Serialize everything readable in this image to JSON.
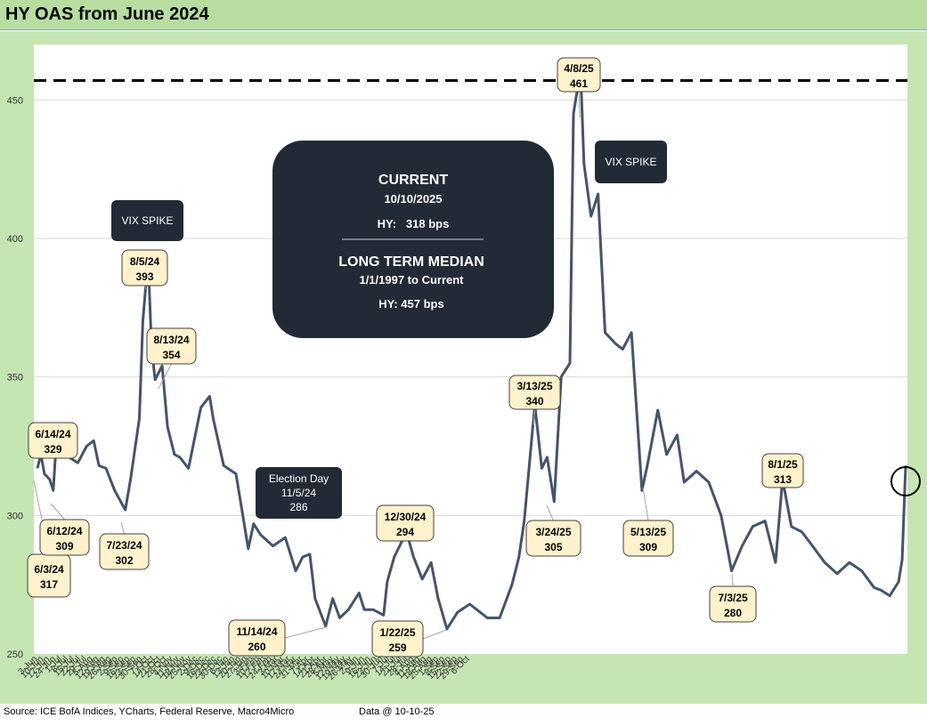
{
  "title": "HY OAS from June 2024",
  "footer": {
    "source": "Source: ICE BofA Indices, YCharts, Federal Reserve, Macro4Micro",
    "data_as_of": "Data @ 10-10-25"
  },
  "colors": {
    "frame_green": "#c5e5b3",
    "line": "#44546a",
    "callout_fill": "#fff2cc",
    "dark_box": "#222a35",
    "median_line": "#000000"
  },
  "info_box": {
    "current_title": "CURRENT",
    "current_date": "10/10/2025",
    "current_value": "HY:   318 bps",
    "median_title": "LONG TERM MEDIAN",
    "median_range": "1/1/1997 to Current",
    "median_value": "HY: 457 bps"
  },
  "dark_labels": [
    {
      "id": "vix-spike-1",
      "lines": [
        "VIX SPIKE"
      ]
    },
    {
      "id": "vix-spike-2",
      "lines": [
        "VIX SPIKE"
      ]
    },
    {
      "id": "election-day",
      "lines": [
        "Election Day",
        "11/5/24",
        "286"
      ]
    }
  ],
  "callouts": [
    {
      "date": "6/3/24",
      "value": "317"
    },
    {
      "date": "6/12/24",
      "value": "309"
    },
    {
      "date": "6/14/24",
      "value": "329"
    },
    {
      "date": "7/23/24",
      "value": "302"
    },
    {
      "date": "8/5/24",
      "value": "393"
    },
    {
      "date": "8/13/24",
      "value": "354"
    },
    {
      "date": "11/14/24",
      "value": "260"
    },
    {
      "date": "12/30/24",
      "value": "294"
    },
    {
      "date": "1/22/25",
      "value": "259"
    },
    {
      "date": "3/13/25",
      "value": "340"
    },
    {
      "date": "3/24/25",
      "value": "305"
    },
    {
      "date": "4/8/25",
      "value": "461"
    },
    {
      "date": "5/13/25",
      "value": "309"
    },
    {
      "date": "7/3/25",
      "value": "280"
    },
    {
      "date": "8/1/25",
      "value": "313"
    }
  ],
  "chart_data": {
    "type": "line",
    "ylim": [
      250,
      470
    ],
    "yticks": [
      "250",
      "300",
      "350",
      "400",
      "450"
    ],
    "median": 457,
    "grid": "horizontal",
    "xtick_labels": [
      "3-Jun",
      "10-Jun",
      "17-Jun",
      "24-Jun",
      "1-Jul",
      "8-Jul",
      "15-Jul",
      "22-Jul",
      "29-Jul",
      "5-Aug",
      "12-Aug",
      "19-Aug",
      "26-Aug",
      "2-Sep",
      "9-Sep",
      "16-Sep",
      "23-Sep",
      "30-Sep",
      "7-Oct",
      "14-Oct",
      "21-Oct",
      "28-Oct",
      "4-Nov",
      "11-Nov",
      "18-Nov",
      "25-Nov",
      "2-Dec",
      "9-Dec",
      "16-Dec",
      "23-Dec",
      "30-Dec",
      "6-Jan",
      "13-Jan",
      "20-Jan",
      "27-Jan",
      "3-Feb",
      "10-Feb",
      "17-Feb",
      "24-Feb",
      "3-Mar",
      "10-Mar",
      "17-Mar",
      "24-Mar",
      "31-Mar",
      "7-Apr",
      "14-Apr",
      "21-Apr",
      "28-Apr",
      "5-May",
      "12-May",
      "19-May",
      "26-May",
      "2-Jun",
      "9-Jun",
      "16-Jun",
      "23-Jun",
      "30-Jun",
      "7-Jul",
      "14-Jul",
      "21-Jul",
      "28-Jul",
      "4-Aug",
      "11-Aug",
      "18-Aug",
      "25-Aug",
      "1-Sep",
      "8-Sep",
      "15-Sep",
      "22-Sep",
      "29-Sep",
      "6-Oct"
    ],
    "series": [
      {
        "x": [
          "2024-06-03",
          "2024-06-05",
          "2024-06-07",
          "2024-06-10",
          "2024-06-12",
          "2024-06-14",
          "2024-06-18",
          "2024-06-21",
          "2024-06-26",
          "2024-07-01",
          "2024-07-05",
          "2024-07-08",
          "2024-07-12",
          "2024-07-17",
          "2024-07-23",
          "2024-07-26",
          "2024-07-31",
          "2024-08-02",
          "2024-08-05",
          "2024-08-07",
          "2024-08-09",
          "2024-08-13",
          "2024-08-16",
          "2024-08-20",
          "2024-08-23",
          "2024-08-28",
          "2024-09-04",
          "2024-09-09",
          "2024-09-11",
          "2024-09-17",
          "2024-09-24",
          "2024-10-01",
          "2024-10-04",
          "2024-10-08",
          "2024-10-15",
          "2024-10-22",
          "2024-10-28",
          "2024-11-01",
          "2024-11-05",
          "2024-11-08",
          "2024-11-14",
          "2024-11-18",
          "2024-11-22",
          "2024-11-27",
          "2024-12-03",
          "2024-12-06",
          "2024-12-11",
          "2024-12-17",
          "2024-12-19",
          "2024-12-23",
          "2024-12-30",
          "2025-01-03",
          "2025-01-08",
          "2025-01-13",
          "2025-01-17",
          "2025-01-22",
          "2025-01-28",
          "2025-02-04",
          "2025-02-10",
          "2025-02-14",
          "2025-02-21",
          "2025-02-28",
          "2025-03-04",
          "2025-03-07",
          "2025-03-13",
          "2025-03-17",
          "2025-03-20",
          "2025-03-24",
          "2025-03-28",
          "2025-04-02",
          "2025-04-04",
          "2025-04-08",
          "2025-04-10",
          "2025-04-14",
          "2025-04-18",
          "2025-04-22",
          "2025-04-28",
          "2025-05-02",
          "2025-05-07",
          "2025-05-13",
          "2025-05-16",
          "2025-05-22",
          "2025-05-27",
          "2025-06-02",
          "2025-06-06",
          "2025-06-13",
          "2025-06-20",
          "2025-06-27",
          "2025-07-03",
          "2025-07-09",
          "2025-07-15",
          "2025-07-22",
          "2025-07-28",
          "2025-08-01",
          "2025-08-06",
          "2025-08-12",
          "2025-08-18",
          "2025-08-25",
          "2025-09-01",
          "2025-09-08",
          "2025-09-15",
          "2025-09-22",
          "2025-09-26",
          "2025-10-01",
          "2025-10-06",
          "2025-10-08",
          "2025-10-10"
        ],
        "values": [
          317,
          322,
          315,
          313,
          309,
          329,
          325,
          321,
          319,
          325,
          327,
          318,
          317,
          309,
          302,
          313,
          335,
          370,
          393,
          360,
          349,
          354,
          332,
          322,
          321,
          317,
          339,
          343,
          335,
          318,
          315,
          288,
          297,
          293,
          289,
          292,
          280,
          285,
          286,
          270,
          260,
          270,
          263,
          266,
          272,
          266,
          266,
          264,
          276,
          285,
          294,
          285,
          277,
          283,
          270,
          259,
          265,
          268,
          265,
          263,
          263,
          275,
          285,
          298,
          340,
          317,
          321,
          305,
          350,
          355,
          445,
          461,
          427,
          408,
          416,
          366,
          362,
          360,
          366,
          309,
          318,
          338,
          322,
          329,
          312,
          316,
          312,
          300,
          280,
          289,
          296,
          298,
          283,
          313,
          296,
          294,
          289,
          283,
          279,
          283,
          280,
          274,
          273,
          271,
          276,
          284,
          318
        ]
      }
    ]
  }
}
